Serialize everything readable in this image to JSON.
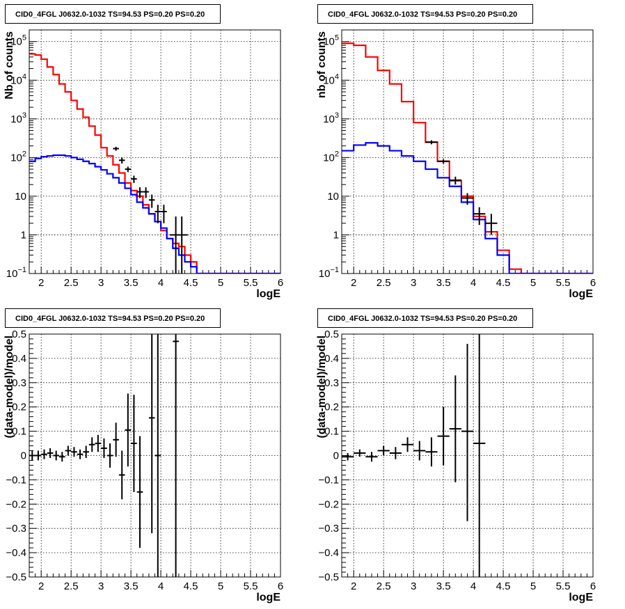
{
  "panels": [
    {
      "title": "CID0_4FGL J0632.0-1032 TS=94.53 PS=0.20 PS=0.20",
      "chart_data": {
        "type": "line",
        "xlabel": "logE",
        "ylabel": "Nb of counts",
        "xlim": [
          1.8,
          6.0
        ],
        "ylim": [
          0.1,
          200000
        ],
        "yscale": "log",
        "grid": true,
        "xticks": [
          "2",
          "2.5",
          "3",
          "3.5",
          "4",
          "4.5",
          "5",
          "5.5",
          "6"
        ],
        "yticks": [
          {
            "v": 0.1,
            "mant": "10",
            "exp": "−1"
          },
          {
            "v": 1,
            "mant": "1",
            "exp": ""
          },
          {
            "v": 10,
            "mant": "10",
            "exp": ""
          },
          {
            "v": 100,
            "mant": "10",
            "exp": "2"
          },
          {
            "v": 1000,
            "mant": "10",
            "exp": "3"
          },
          {
            "v": 10000,
            "mant": "10",
            "exp": "4"
          },
          {
            "v": 100000,
            "mant": "10",
            "exp": "5"
          }
        ],
        "edges": [
          1.8,
          1.9,
          2.0,
          2.1,
          2.2,
          2.3,
          2.4,
          2.5,
          2.6,
          2.7,
          2.8,
          2.9,
          3.0,
          3.1,
          3.2,
          3.3,
          3.4,
          3.5,
          3.6,
          3.7,
          3.8,
          3.9,
          4.0,
          4.1,
          4.2,
          4.3,
          4.4,
          4.5,
          4.6,
          4.7,
          4.8,
          4.9,
          5.0,
          5.1,
          5.2,
          5.3,
          5.4,
          5.5,
          5.6,
          5.7,
          5.8,
          5.9,
          6.0
        ],
        "series": [
          {
            "color": "#ff0000",
            "values": [
              48000,
              45000,
              35000,
              22000,
              14000,
              8000,
              5000,
              3000,
              1800,
              1100,
              650,
              380,
              180,
              110,
              65,
              40,
              22,
              14,
              10,
              6,
              3.5,
              2.2,
              1.3,
              0.8,
              0.6,
              0.5,
              0.3,
              0.2,
              0.1,
              0.1,
              0.1,
              0.1,
              0.1,
              0.1,
              0.1,
              0.1,
              0.1,
              0.1,
              0.1,
              0.1,
              0.1,
              0.1
            ]
          },
          {
            "color": "#0000ff",
            "values": [
              80,
              95,
              105,
              110,
              115,
              115,
              110,
              100,
              90,
              80,
              70,
              58,
              48,
              38,
              30,
              22,
              16,
              11,
              7,
              5,
              3.5,
              2.2,
              1.5,
              0.8,
              0.45,
              0.3,
              0.2,
              0.15,
              0.1,
              0.1,
              0.1,
              0.1,
              0.1,
              0.1,
              0.1,
              0.1,
              0.1,
              0.1,
              0.1,
              0.1,
              0.1,
              0.1
            ]
          }
        ],
        "points": [
          {
            "x": 3.25,
            "y": 170,
            "xerr": 0.05,
            "ylo": 150,
            "yhi": 190
          },
          {
            "x": 3.35,
            "y": 85,
            "xerr": 0.05,
            "ylo": 70,
            "yhi": 100
          },
          {
            "x": 3.45,
            "y": 50,
            "xerr": 0.05,
            "ylo": 42,
            "yhi": 58
          },
          {
            "x": 3.55,
            "y": 28,
            "xerr": 0.05,
            "ylo": 22,
            "yhi": 34
          },
          {
            "x": 3.65,
            "y": 13,
            "xerr": 0.05,
            "ylo": 9,
            "yhi": 17
          },
          {
            "x": 3.75,
            "y": 13,
            "xerr": 0.05,
            "ylo": 9,
            "yhi": 17
          },
          {
            "x": 3.85,
            "y": 8,
            "xerr": 0.05,
            "ylo": 5,
            "yhi": 11
          },
          {
            "x": 3.95,
            "y": 4,
            "xerr": 0.05,
            "ylo": 2,
            "yhi": 6
          },
          {
            "x": 4.05,
            "y": 4,
            "xerr": 0.05,
            "ylo": 2,
            "yhi": 6
          },
          {
            "x": 4.25,
            "y": 1,
            "xerr": 0.1,
            "ylo": 0.1,
            "yhi": 3
          },
          {
            "x": 4.35,
            "y": 1,
            "xerr": 0.1,
            "ylo": 0.1,
            "yhi": 3
          }
        ]
      }
    },
    {
      "title": "CID0_4FGL J0632.0-1032 TS=94.53 PS=0.20 PS=0.20",
      "chart_data": {
        "type": "line",
        "xlabel": "logE",
        "ylabel": "nb of counts",
        "xlim": [
          1.8,
          6.0
        ],
        "ylim": [
          0.1,
          200000
        ],
        "yscale": "log",
        "grid": true,
        "xticks": [
          "2",
          "2.5",
          "3",
          "3.5",
          "4",
          "4.5",
          "5",
          "5.5",
          "6"
        ],
        "yticks": [
          {
            "v": 0.1,
            "mant": "10",
            "exp": "−1"
          },
          {
            "v": 1,
            "mant": "1",
            "exp": ""
          },
          {
            "v": 10,
            "mant": "10",
            "exp": ""
          },
          {
            "v": 100,
            "mant": "10",
            "exp": "2"
          },
          {
            "v": 1000,
            "mant": "10",
            "exp": "3"
          },
          {
            "v": 10000,
            "mant": "10",
            "exp": "4"
          },
          {
            "v": 100000,
            "mant": "10",
            "exp": "5"
          }
        ],
        "edges": [
          1.8,
          2.0,
          2.2,
          2.4,
          2.6,
          2.8,
          3.0,
          3.2,
          3.4,
          3.6,
          3.8,
          4.0,
          4.2,
          4.4,
          4.6,
          4.8,
          5.0,
          5.2,
          5.4,
          5.6,
          5.8,
          6.0
        ],
        "series": [
          {
            "color": "#ff0000",
            "values": [
              90000,
              80000,
              40000,
              18000,
              8000,
              2800,
              800,
              250,
              80,
              25,
              10,
              3,
              1.2,
              0.4,
              0.13,
              0.1,
              0.1,
              0.1,
              0.1,
              0.1,
              0.1
            ]
          },
          {
            "color": "#0000ff",
            "values": [
              150,
              210,
              240,
              200,
              150,
              110,
              80,
              50,
              30,
              18,
              7,
              2.5,
              0.8,
              0.3,
              0.1,
              0.1,
              0.1,
              0.1,
              0.1,
              0.1,
              0.1
            ]
          }
        ],
        "points": [
          {
            "x": 3.3,
            "y": 250,
            "xerr": 0.1,
            "ylo": 220,
            "yhi": 280
          },
          {
            "x": 3.5,
            "y": 80,
            "xerr": 0.1,
            "ylo": 70,
            "yhi": 90
          },
          {
            "x": 3.7,
            "y": 26,
            "xerr": 0.1,
            "ylo": 20,
            "yhi": 32
          },
          {
            "x": 3.9,
            "y": 9,
            "xerr": 0.1,
            "ylo": 6,
            "yhi": 12
          },
          {
            "x": 4.1,
            "y": 3.5,
            "xerr": 0.1,
            "ylo": 1.8,
            "yhi": 5.2
          },
          {
            "x": 4.3,
            "y": 2,
            "xerr": 0.1,
            "ylo": 1,
            "yhi": 3.5
          }
        ]
      }
    },
    {
      "title": "CID0_4FGL J0632.0-1032 TS=94.53 PS=0.20 PS=0.20",
      "chart_data": {
        "type": "scatter",
        "xlabel": "logE",
        "ylabel": "(data-model)/model",
        "xlim": [
          1.8,
          6.0
        ],
        "ylim": [
          -0.5,
          0.5
        ],
        "yscale": "linear",
        "grid": true,
        "xticks": [
          "2",
          "2.5",
          "3",
          "3.5",
          "4",
          "4.5",
          "5",
          "5.5",
          "6"
        ],
        "yticks": [
          {
            "v": -0.5,
            "label": "−0.5"
          },
          {
            "v": -0.4,
            "label": "−0.4"
          },
          {
            "v": -0.3,
            "label": "−0.3"
          },
          {
            "v": -0.2,
            "label": "−0.2"
          },
          {
            "v": -0.1,
            "label": "−0.1"
          },
          {
            "v": 0,
            "label": "0"
          },
          {
            "v": 0.1,
            "label": "0.1"
          },
          {
            "v": 0.2,
            "label": "0.2"
          },
          {
            "v": 0.3,
            "label": "0.3"
          },
          {
            "v": 0.4,
            "label": "0.4"
          },
          {
            "v": 0.5,
            "label": "0.5"
          }
        ],
        "points": [
          {
            "x": 1.85,
            "y": 0.0,
            "xerr": 0.05,
            "yerr": 0.02
          },
          {
            "x": 1.95,
            "y": 0.0,
            "xerr": 0.05,
            "yerr": 0.02
          },
          {
            "x": 2.05,
            "y": 0.005,
            "xerr": 0.05,
            "yerr": 0.02
          },
          {
            "x": 2.15,
            "y": 0.01,
            "xerr": 0.05,
            "yerr": 0.02
          },
          {
            "x": 2.25,
            "y": 0.0,
            "xerr": 0.05,
            "yerr": 0.02
          },
          {
            "x": 2.35,
            "y": -0.005,
            "xerr": 0.05,
            "yerr": 0.02
          },
          {
            "x": 2.45,
            "y": 0.02,
            "xerr": 0.05,
            "yerr": 0.02
          },
          {
            "x": 2.55,
            "y": 0.015,
            "xerr": 0.05,
            "yerr": 0.02
          },
          {
            "x": 2.65,
            "y": 0.005,
            "xerr": 0.05,
            "yerr": 0.02
          },
          {
            "x": 2.75,
            "y": 0.015,
            "xerr": 0.05,
            "yerr": 0.025
          },
          {
            "x": 2.85,
            "y": 0.045,
            "xerr": 0.05,
            "yerr": 0.03
          },
          {
            "x": 2.95,
            "y": 0.05,
            "xerr": 0.05,
            "yerr": 0.035
          },
          {
            "x": 3.05,
            "y": 0.03,
            "xerr": 0.05,
            "yerr": 0.04
          },
          {
            "x": 3.15,
            "y": 0.0,
            "xerr": 0.05,
            "yerr": 0.05
          },
          {
            "x": 3.25,
            "y": 0.065,
            "xerr": 0.05,
            "yerr": 0.07
          },
          {
            "x": 3.35,
            "y": -0.08,
            "xerr": 0.05,
            "yerr": 0.1
          },
          {
            "x": 3.45,
            "y": 0.105,
            "xerr": 0.05,
            "yerr": 0.15
          },
          {
            "x": 3.55,
            "y": 0.05,
            "xerr": 0.05,
            "yerr": 0.2
          },
          {
            "x": 3.65,
            "y": -0.15,
            "xerr": 0.05,
            "yerr": 0.23
          },
          {
            "x": 3.85,
            "y": 0.155,
            "xerr": 0.05,
            "ylo": -0.32,
            "yhi": 0.5
          },
          {
            "x": 3.95,
            "y": 0.0,
            "xerr": 0.05,
            "ylo": -0.5,
            "yhi": 0.5
          },
          {
            "x": 4.25,
            "y": 0.47,
            "xerr": 0.05,
            "ylo": -0.5,
            "yhi": 0.5
          }
        ]
      }
    },
    {
      "title": "CID0_4FGL J0632.0-1032 TS=94.53 PS=0.20 PS=0.20",
      "chart_data": {
        "type": "scatter",
        "xlabel": "logE",
        "ylabel": "(data-model)/model",
        "xlim": [
          1.8,
          6.0
        ],
        "ylim": [
          -0.5,
          0.5
        ],
        "yscale": "linear",
        "grid": true,
        "xticks": [
          "2",
          "2.5",
          "3",
          "3.5",
          "4",
          "4.5",
          "5",
          "5.5",
          "6"
        ],
        "yticks": [
          {
            "v": -0.5,
            "label": "−0.5"
          },
          {
            "v": -0.4,
            "label": "−0.4"
          },
          {
            "v": -0.3,
            "label": "−0.3"
          },
          {
            "v": -0.2,
            "label": "−0.2"
          },
          {
            "v": -0.1,
            "label": "−0.1"
          },
          {
            "v": 0,
            "label": "0"
          },
          {
            "v": 0.1,
            "label": "0.1"
          },
          {
            "v": 0.2,
            "label": "0.2"
          },
          {
            "v": 0.3,
            "label": "0.3"
          },
          {
            "v": 0.4,
            "label": "0.4"
          },
          {
            "v": 0.5,
            "label": "0.5"
          }
        ],
        "points": [
          {
            "x": 1.9,
            "y": -0.005,
            "xerr": 0.1,
            "yerr": 0.015
          },
          {
            "x": 2.1,
            "y": 0.01,
            "xerr": 0.1,
            "yerr": 0.015
          },
          {
            "x": 2.3,
            "y": -0.005,
            "xerr": 0.1,
            "yerr": 0.02
          },
          {
            "x": 2.5,
            "y": 0.02,
            "xerr": 0.1,
            "yerr": 0.02
          },
          {
            "x": 2.7,
            "y": 0.01,
            "xerr": 0.1,
            "yerr": 0.025
          },
          {
            "x": 2.9,
            "y": 0.045,
            "xerr": 0.1,
            "yerr": 0.03
          },
          {
            "x": 3.1,
            "y": 0.02,
            "xerr": 0.1,
            "yerr": 0.04
          },
          {
            "x": 3.3,
            "y": 0.015,
            "xerr": 0.1,
            "yerr": 0.06
          },
          {
            "x": 3.5,
            "y": 0.08,
            "xerr": 0.1,
            "yerr": 0.12
          },
          {
            "x": 3.7,
            "y": 0.11,
            "xerr": 0.1,
            "yerr": 0.22
          },
          {
            "x": 3.9,
            "y": 0.1,
            "xerr": 0.1,
            "ylo": -0.27,
            "yhi": 0.46
          },
          {
            "x": 4.1,
            "y": 0.05,
            "xerr": 0.1,
            "ylo": -0.5,
            "yhi": 0.5
          }
        ]
      }
    }
  ]
}
